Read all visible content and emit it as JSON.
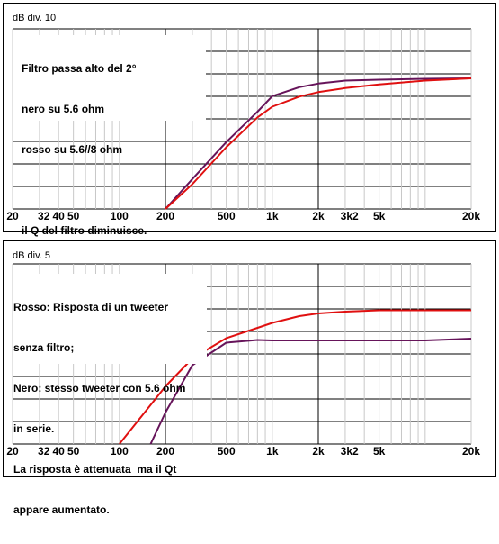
{
  "chart_data": [
    {
      "type": "line",
      "scale_label": "dB div. 10",
      "annotation_lines": [
        "Filtro passa alto del 2°",
        "nero su 5.6 ohm",
        "rosso su 5.6//8 ohm",
        "",
        "il Q del filtro diminuisce."
      ],
      "x_scale": "log",
      "xlim": [
        20,
        20000
      ],
      "x_ticks": [
        {
          "value": 20,
          "label": "20"
        },
        {
          "value": 32,
          "label": "32"
        },
        {
          "value": 40,
          "label": "40"
        },
        {
          "value": 50,
          "label": "50"
        },
        {
          "value": 100,
          "label": "100"
        },
        {
          "value": 200,
          "label": "200"
        },
        {
          "value": 500,
          "label": "500"
        },
        {
          "value": 1000,
          "label": "1k"
        },
        {
          "value": 2000,
          "label": "2k"
        },
        {
          "value": 3200,
          "label": "3k2"
        },
        {
          "value": 5000,
          "label": "5k"
        },
        {
          "value": 20000,
          "label": "20k"
        }
      ],
      "ylim": [
        -80,
        0
      ],
      "grid": true,
      "series": [
        {
          "color": "#66145a",
          "x": [
            200,
            300,
            500,
            800,
            1000,
            1500,
            2000,
            3000,
            5000,
            10000,
            20000
          ],
          "y": [
            -80,
            -66.7,
            -50.3,
            -36.8,
            -29.9,
            -25.9,
            -24.3,
            -23,
            -22.6,
            -22.2,
            -22
          ]
        },
        {
          "color": "#e01010",
          "x": [
            200,
            300,
            500,
            800,
            1000,
            1500,
            2000,
            3000,
            5000,
            10000,
            20000
          ],
          "y": [
            -80,
            -69,
            -52.6,
            -39.3,
            -34.6,
            -30.1,
            -28.1,
            -26.3,
            -24.7,
            -23,
            -22
          ]
        }
      ]
    },
    {
      "type": "line",
      "scale_label": "dB div. 5",
      "annotation_lines": [
        "Rosso: Risposta di un tweeter",
        "senza filtro;",
        "Nero: stesso tweeter con 5.6 ohm",
        "in serie.",
        "La risposta è attenuata  ma il Qt",
        "appare aumentato."
      ],
      "x_scale": "log",
      "xlim": [
        20,
        20000
      ],
      "x_ticks": [
        {
          "value": 20,
          "label": "20"
        },
        {
          "value": 32,
          "label": "32"
        },
        {
          "value": 40,
          "label": "40"
        },
        {
          "value": 50,
          "label": "50"
        },
        {
          "value": 100,
          "label": "100"
        },
        {
          "value": 200,
          "label": "200"
        },
        {
          "value": 500,
          "label": "500"
        },
        {
          "value": 1000,
          "label": "1k"
        },
        {
          "value": 2000,
          "label": "2k"
        },
        {
          "value": 3200,
          "label": "3k2"
        },
        {
          "value": 5000,
          "label": "5k"
        },
        {
          "value": 20000,
          "label": "20k"
        }
      ],
      "ylim": [
        -40,
        0
      ],
      "grid": true,
      "series": [
        {
          "color": "#e01010",
          "x": [
            100,
            200,
            300,
            500,
            800,
            1000,
            1500,
            2000,
            3000,
            5000,
            10000,
            20000
          ],
          "y": [
            -40,
            -27.2,
            -21,
            -16.5,
            -14.2,
            -13.1,
            -11.6,
            -11,
            -10.6,
            -10.3,
            -10.3,
            -10.3
          ]
        },
        {
          "color": "#66145a",
          "x": [
            160,
            200,
            300,
            500,
            800,
            1000,
            2000,
            5000,
            10000,
            20000
          ],
          "y": [
            -40,
            -33,
            -22.5,
            -17.5,
            -16.9,
            -17,
            -17,
            -17,
            -17,
            -16.6
          ]
        }
      ]
    }
  ]
}
